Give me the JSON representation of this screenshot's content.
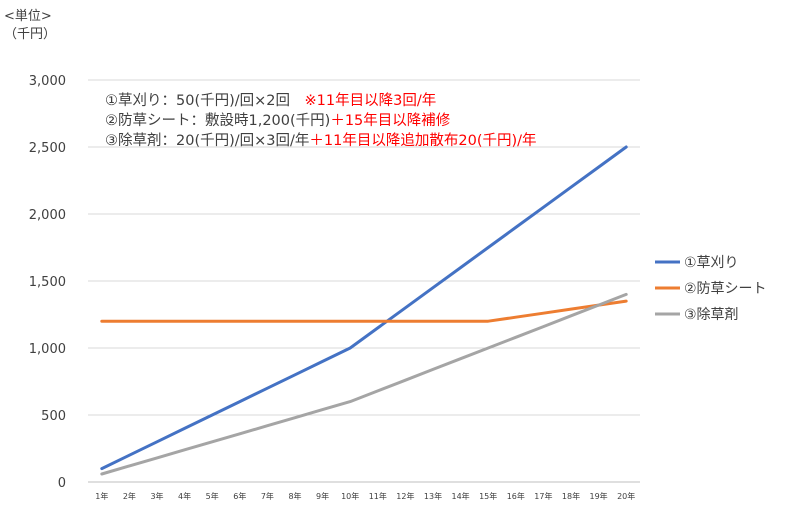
{
  "unit_label": {
    "line1": "<単位>",
    "line2": "（千円）"
  },
  "colors": {
    "s1": "#4472C4",
    "s2": "#ED7D31",
    "s3": "#A5A5A5",
    "grid": "#D9D9D9",
    "note_red": "#FF0000",
    "text": "#404040"
  },
  "annotations": [
    {
      "main": "①草刈り：50(千円)/回×2回",
      "extra": "　※11年目以降3回/年"
    },
    {
      "main": "②防草シート：敷設時1,200(千円)",
      "extra": "＋15年目以降補修"
    },
    {
      "main": "③除草剤：20(千円)/回×3回/年",
      "extra": "＋11年目以降追加散布20(千円)/年"
    }
  ],
  "chart_data": {
    "type": "line",
    "categories": [
      "1年",
      "2年",
      "3年",
      "4年",
      "5年",
      "6年",
      "7年",
      "8年",
      "9年",
      "10年",
      "11年",
      "12年",
      "13年",
      "14年",
      "15年",
      "16年",
      "17年",
      "18年",
      "19年",
      "20年"
    ],
    "yticks": [
      "0",
      "500",
      "1,000",
      "1,500",
      "2,000",
      "2,500",
      "3,000"
    ],
    "ylim": [
      0,
      3000
    ],
    "grid": true,
    "legend": "right",
    "series": [
      {
        "name": "①草刈り",
        "color": "#4472C4",
        "values": [
          100,
          200,
          300,
          400,
          500,
          600,
          700,
          800,
          900,
          1000,
          1150,
          1300,
          1450,
          1600,
          1750,
          1900,
          2050,
          2200,
          2350,
          2500
        ]
      },
      {
        "name": "②防草シート",
        "color": "#ED7D31",
        "values": [
          1200,
          1200,
          1200,
          1200,
          1200,
          1200,
          1200,
          1200,
          1200,
          1200,
          1200,
          1200,
          1200,
          1200,
          1200,
          1230,
          1260,
          1290,
          1320,
          1350
        ]
      },
      {
        "name": "③除草剤",
        "color": "#A5A5A5",
        "values": [
          60,
          120,
          180,
          240,
          300,
          360,
          420,
          480,
          540,
          600,
          680,
          760,
          840,
          920,
          1000,
          1080,
          1160,
          1240,
          1320,
          1400
        ]
      }
    ]
  }
}
